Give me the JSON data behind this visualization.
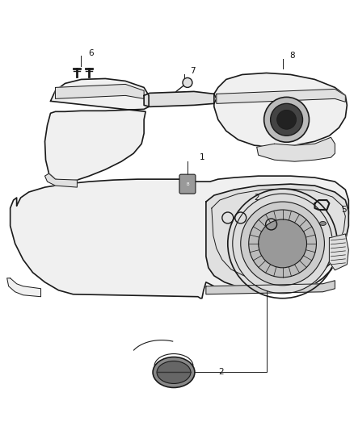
{
  "background_color": "#ffffff",
  "fig_width": 4.38,
  "fig_height": 5.33,
  "dpi": 100,
  "line_color": "#1a1a1a",
  "fill_light": "#f0f0f0",
  "fill_mid": "#e0e0e0",
  "fill_dark": "#c8c8c8",
  "text_color": "#111111",
  "label_fs": 7.5
}
